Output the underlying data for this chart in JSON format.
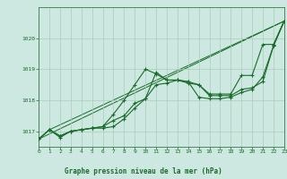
{
  "background_color": "#cce8e0",
  "grid_color": "#aaccbb",
  "line_color": "#1a6b2a",
  "spine_color": "#3a7a4a",
  "title": "Graphe pression niveau de la mer (hPa)",
  "xlim": [
    0,
    23
  ],
  "ylim": [
    1016.5,
    1021.0
  ],
  "yticks": [
    1017,
    1018,
    1019,
    1020
  ],
  "xticks": [
    0,
    1,
    2,
    3,
    4,
    5,
    6,
    7,
    8,
    9,
    10,
    11,
    12,
    13,
    14,
    15,
    16,
    17,
    18,
    19,
    20,
    21,
    22,
    23
  ],
  "series1": {
    "x": [
      0,
      1,
      2,
      3,
      4,
      5,
      6,
      7,
      8,
      9,
      10,
      11,
      12,
      13,
      14,
      15,
      16,
      17,
      18,
      19,
      20,
      21,
      22,
      23
    ],
    "y": [
      1016.75,
      1017.05,
      1016.8,
      1017.0,
      1017.05,
      1017.1,
      1017.1,
      1017.15,
      1017.4,
      1017.75,
      1018.05,
      1018.5,
      1018.55,
      1018.65,
      1018.6,
      1018.1,
      1018.05,
      1018.05,
      1018.1,
      1018.25,
      1018.35,
      1018.75,
      1019.75,
      1020.55
    ]
  },
  "series2": {
    "x": [
      0,
      1,
      2,
      3,
      4,
      5,
      6,
      7,
      8,
      9,
      10,
      11,
      12,
      13,
      14,
      15,
      16,
      17,
      18,
      19,
      20,
      21,
      22,
      23
    ],
    "y": [
      1016.75,
      1017.05,
      1016.85,
      1017.0,
      1017.05,
      1017.1,
      1017.15,
      1017.55,
      1018.0,
      1018.5,
      1019.0,
      1018.85,
      1018.65,
      1018.65,
      1018.6,
      1018.5,
      1018.2,
      1018.2,
      1018.2,
      1018.8,
      1018.8,
      1019.8,
      1019.8,
      1020.55
    ]
  },
  "series3": {
    "x": [
      0,
      1,
      2,
      3,
      4,
      5,
      6,
      7,
      8,
      9,
      10,
      11,
      12,
      13,
      14,
      15,
      16,
      17,
      18,
      19,
      20,
      21,
      22,
      23
    ],
    "y": [
      1016.75,
      1017.05,
      1016.85,
      1017.0,
      1017.05,
      1017.1,
      1017.15,
      1017.35,
      1017.5,
      1017.9,
      1018.05,
      1018.9,
      1018.65,
      1018.65,
      1018.55,
      1018.5,
      1018.15,
      1018.15,
      1018.15,
      1018.35,
      1018.4,
      1018.6,
      1019.75,
      1020.55
    ]
  },
  "line1": {
    "x": [
      0,
      23
    ],
    "y": [
      1016.75,
      1020.55
    ]
  },
  "line2": {
    "x": [
      1,
      23
    ],
    "y": [
      1017.05,
      1020.55
    ]
  }
}
